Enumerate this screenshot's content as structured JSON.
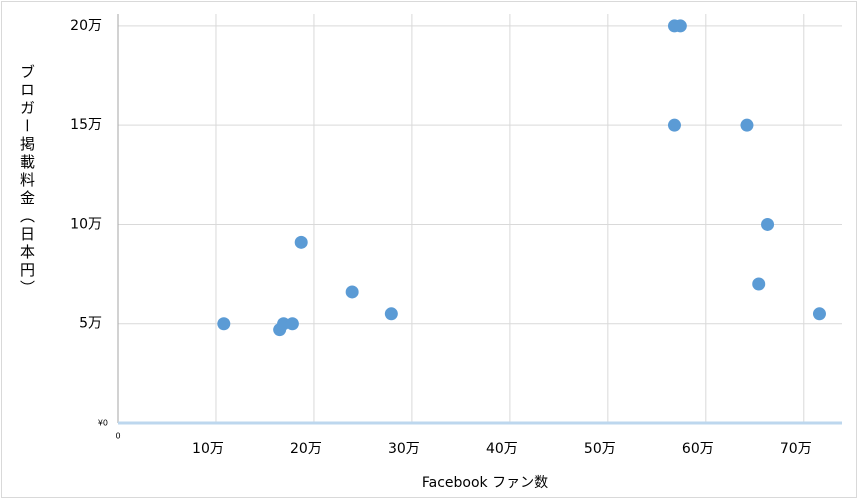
{
  "chart_data": {
    "type": "scatter",
    "x_label": "Facebook ファン数",
    "y_label": "ブロガー掲載料金（日本円）",
    "color": "#5b9bd5",
    "grid": true,
    "x": [
      108000,
      165000,
      169000,
      178000,
      187000,
      239000,
      279000,
      568000,
      574000,
      568000,
      642000,
      663000,
      654000,
      716000
    ],
    "values": [
      50000,
      47000,
      50000,
      50000,
      91000,
      66000,
      55000,
      200000,
      200000,
      150000,
      150000,
      100000,
      70000,
      55000
    ],
    "xlim": [
      0,
      739000
    ],
    "ylim": [
      0,
      206000
    ],
    "xticks": [
      {
        "value": 0,
        "label": "0"
      },
      {
        "value": 100000,
        "label": "10万"
      },
      {
        "value": 200000,
        "label": "20万"
      },
      {
        "value": 300000,
        "label": "30万"
      },
      {
        "value": 400000,
        "label": "40万"
      },
      {
        "value": 500000,
        "label": "50万"
      },
      {
        "value": 600000,
        "label": "60万"
      },
      {
        "value": 700000,
        "label": "70万"
      }
    ],
    "yticks": [
      {
        "value": 0,
        "label": "¥0"
      },
      {
        "value": 50000,
        "label": "5万"
      },
      {
        "value": 100000,
        "label": "10万"
      },
      {
        "value": 150000,
        "label": "15万"
      },
      {
        "value": 200000,
        "label": "20万"
      }
    ]
  }
}
